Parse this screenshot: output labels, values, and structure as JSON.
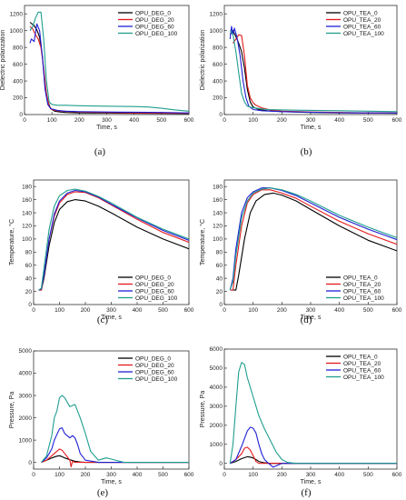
{
  "colors": {
    "black": "#000000",
    "red": "#e41a1c",
    "blue": "#1f1fd6",
    "teal": "#1f9e8f"
  },
  "chart_data": [
    {
      "type": "line",
      "caption": "(a)",
      "xlabel": "Time, s",
      "ylabel": "Dielectric polarization",
      "xlim": [
        0,
        600
      ],
      "ylim": [
        0,
        1300
      ],
      "xticks": [
        0,
        100,
        200,
        300,
        400,
        500,
        600
      ],
      "yticks": [
        0,
        200,
        400,
        600,
        800,
        1000,
        1200
      ],
      "legend": "top-right",
      "series": [
        {
          "name": "OPU_DEG_0",
          "color": "#000000",
          "x": [
            20,
            35,
            45,
            55,
            65,
            75,
            85,
            95,
            110,
            130,
            150,
            200,
            300,
            400,
            500,
            600
          ],
          "y": [
            1100,
            1060,
            1010,
            920,
            700,
            350,
            160,
            70,
            40,
            30,
            25,
            20,
            18,
            15,
            14,
            12
          ]
        },
        {
          "name": "OPU_DEG_20",
          "color": "#e41a1c",
          "x": [
            20,
            30,
            40,
            50,
            60,
            70,
            80,
            90,
            100,
            120,
            140,
            200,
            300,
            400,
            500,
            600
          ],
          "y": [
            1050,
            1020,
            950,
            900,
            800,
            550,
            250,
            100,
            60,
            45,
            40,
            30,
            25,
            20,
            18,
            15
          ]
        },
        {
          "name": "OPU_DEG_60",
          "color": "#1f1fd6",
          "x": [
            20,
            25,
            35,
            45,
            55,
            65,
            75,
            85,
            95,
            120,
            150,
            200,
            300,
            400,
            500,
            600
          ],
          "y": [
            850,
            900,
            870,
            1080,
            1000,
            700,
            300,
            120,
            70,
            50,
            40,
            35,
            30,
            28,
            25,
            20
          ]
        },
        {
          "name": "OPU_DEG_100",
          "color": "#1f9e8f",
          "x": [
            20,
            30,
            40,
            50,
            60,
            70,
            80,
            90,
            100,
            120,
            150,
            200,
            300,
            400,
            450,
            500,
            550,
            600
          ],
          "y": [
            1000,
            1050,
            1150,
            1220,
            1220,
            900,
            400,
            150,
            120,
            110,
            110,
            105,
            100,
            95,
            90,
            75,
            55,
            40
          ]
        }
      ]
    },
    {
      "type": "line",
      "caption": "(b)",
      "xlabel": "Time, s",
      "ylabel": "Dielectric polarization",
      "xlim": [
        0,
        600
      ],
      "ylim": [
        0,
        1300
      ],
      "xticks": [
        0,
        100,
        200,
        300,
        400,
        500,
        600
      ],
      "yticks": [
        0,
        200,
        400,
        600,
        800,
        1000,
        1200
      ],
      "legend": "top-right",
      "series": [
        {
          "name": "OPU_TEA_0",
          "color": "#000000",
          "x": [
            20,
            30,
            40,
            50,
            60,
            70,
            80,
            90,
            100,
            120,
            150,
            200,
            300,
            400,
            500,
            600
          ],
          "y": [
            950,
            1000,
            930,
            850,
            750,
            550,
            300,
            150,
            90,
            60,
            45,
            35,
            25,
            20,
            18,
            15
          ]
        },
        {
          "name": "OPU_TEA_20",
          "color": "#e41a1c",
          "x": [
            30,
            40,
            50,
            60,
            70,
            80,
            90,
            100,
            110,
            130,
            160,
            200,
            300,
            400,
            500,
            600
          ],
          "y": [
            850,
            900,
            950,
            940,
            700,
            350,
            200,
            140,
            110,
            80,
            55,
            40,
            30,
            25,
            20,
            18
          ]
        },
        {
          "name": "OPU_TEA_60",
          "color": "#1f1fd6",
          "x": [
            20,
            25,
            30,
            35,
            45,
            55,
            65,
            75,
            85,
            100,
            130,
            200,
            300,
            400,
            500,
            600
          ],
          "y": [
            900,
            1050,
            950,
            1030,
            900,
            700,
            400,
            200,
            100,
            60,
            45,
            35,
            28,
            22,
            20,
            18
          ]
        },
        {
          "name": "OPU_TEA_100",
          "color": "#1f9e8f",
          "x": [
            20,
            25,
            30,
            40,
            50,
            60,
            70,
            80,
            100,
            150,
            200,
            300,
            400,
            500,
            600
          ],
          "y": [
            1000,
            980,
            950,
            750,
            500,
            250,
            150,
            100,
            80,
            60,
            55,
            50,
            45,
            40,
            35
          ]
        }
      ]
    },
    {
      "type": "line",
      "caption": "(c)",
      "xlabel": "Time, s",
      "ylabel": "Temperature, °C",
      "xlim": [
        0,
        600
      ],
      "ylim": [
        0,
        190
      ],
      "xticks": [
        0,
        100,
        200,
        300,
        400,
        500,
        600
      ],
      "yticks": [
        0,
        20,
        40,
        60,
        80,
        100,
        120,
        140,
        160,
        180
      ],
      "legend": "bottom-right",
      "series": [
        {
          "name": "OPU_DEG_0",
          "color": "#000000",
          "x": [
            20,
            30,
            40,
            60,
            80,
            100,
            130,
            160,
            200,
            250,
            300,
            400,
            500,
            600
          ],
          "y": [
            22,
            22,
            40,
            90,
            125,
            145,
            157,
            160,
            158,
            150,
            140,
            118,
            100,
            85
          ]
        },
        {
          "name": "OPU_DEG_20",
          "color": "#e41a1c",
          "x": [
            20,
            30,
            40,
            60,
            80,
            100,
            130,
            160,
            200,
            250,
            300,
            400,
            500,
            600
          ],
          "y": [
            22,
            22,
            45,
            100,
            135,
            155,
            168,
            172,
            171,
            163,
            152,
            130,
            110,
            95
          ]
        },
        {
          "name": "OPU_DEG_60",
          "color": "#1f1fd6",
          "x": [
            20,
            30,
            40,
            60,
            80,
            100,
            130,
            160,
            200,
            250,
            300,
            400,
            500,
            600
          ],
          "y": [
            22,
            24,
            45,
            100,
            138,
            158,
            170,
            174,
            172,
            164,
            153,
            132,
            113,
            98
          ]
        },
        {
          "name": "OPU_DEG_100",
          "color": "#1f9e8f",
          "x": [
            20,
            30,
            40,
            60,
            80,
            100,
            130,
            160,
            200,
            250,
            300,
            400,
            500,
            600
          ],
          "y": [
            22,
            25,
            55,
            115,
            150,
            166,
            174,
            176,
            173,
            165,
            155,
            133,
            115,
            100
          ]
        }
      ]
    },
    {
      "type": "line",
      "caption": "(d)",
      "xlabel": "Time, s",
      "ylabel": "Temperature, °C",
      "xlim": [
        0,
        600
      ],
      "ylim": [
        0,
        190
      ],
      "xticks": [
        0,
        100,
        200,
        300,
        400,
        500,
        600
      ],
      "yticks": [
        0,
        20,
        40,
        60,
        80,
        100,
        120,
        140,
        160,
        180
      ],
      "legend": "bottom-right",
      "series": [
        {
          "name": "OPU_TEA_0",
          "color": "#000000",
          "x": [
            30,
            40,
            50,
            70,
            90,
            110,
            140,
            170,
            200,
            250,
            300,
            400,
            500,
            600
          ],
          "y": [
            22,
            22,
            45,
            100,
            140,
            158,
            168,
            170,
            167,
            158,
            145,
            120,
            98,
            82
          ]
        },
        {
          "name": "OPU_TEA_20",
          "color": "#e41a1c",
          "x": [
            20,
            30,
            40,
            60,
            80,
            100,
            130,
            160,
            200,
            250,
            300,
            400,
            500,
            600
          ],
          "y": [
            22,
            22,
            60,
            120,
            155,
            168,
            175,
            175,
            170,
            162,
            150,
            127,
            108,
            92
          ]
        },
        {
          "name": "OPU_TEA_60",
          "color": "#1f1fd6",
          "x": [
            20,
            30,
            40,
            60,
            80,
            100,
            130,
            160,
            200,
            250,
            300,
            400,
            500,
            600
          ],
          "y": [
            22,
            40,
            85,
            140,
            163,
            172,
            178,
            178,
            174,
            166,
            155,
            133,
            115,
            99
          ]
        },
        {
          "name": "OPU_TEA_100",
          "color": "#1f9e8f",
          "x": [
            20,
            30,
            40,
            60,
            80,
            100,
            130,
            160,
            200,
            250,
            300,
            400,
            500,
            600
          ],
          "y": [
            22,
            35,
            75,
            132,
            158,
            170,
            176,
            178,
            175,
            168,
            158,
            136,
            118,
            102
          ]
        }
      ]
    },
    {
      "type": "line",
      "caption": "(e)",
      "xlabel": "Time, s",
      "ylabel": "Pressure, Pa",
      "xlim": [
        0,
        600
      ],
      "ylim": [
        -300,
        5000
      ],
      "xticks": [
        0,
        100,
        200,
        300,
        400,
        500,
        600
      ],
      "yticks": [
        0,
        1000,
        2000,
        3000,
        4000,
        5000
      ],
      "legend": "top-right",
      "series": [
        {
          "name": "OPU_DEG_0",
          "color": "#000000",
          "x": [
            30,
            50,
            70,
            90,
            100,
            110,
            120,
            140,
            160,
            180,
            200,
            300,
            400,
            500,
            600
          ],
          "y": [
            0,
            100,
            200,
            280,
            300,
            260,
            200,
            120,
            50,
            20,
            0,
            0,
            0,
            0,
            0
          ]
        },
        {
          "name": "OPU_DEG_20",
          "color": "#e41a1c",
          "x": [
            30,
            50,
            70,
            90,
            100,
            110,
            120,
            130,
            140,
            145,
            150,
            160,
            200,
            300,
            600
          ],
          "y": [
            0,
            100,
            300,
            500,
            600,
            550,
            400,
            250,
            100,
            -200,
            50,
            0,
            0,
            0,
            0
          ]
        },
        {
          "name": "OPU_DEG_60",
          "color": "#1f1fd6",
          "x": [
            30,
            50,
            70,
            80,
            100,
            110,
            120,
            140,
            150,
            160,
            170,
            180,
            200,
            250,
            300,
            600
          ],
          "y": [
            0,
            200,
            600,
            1000,
            1500,
            1550,
            1300,
            1100,
            1200,
            1100,
            800,
            400,
            100,
            0,
            0,
            0
          ]
        },
        {
          "name": "OPU_DEG_100",
          "color": "#1f9e8f",
          "x": [
            30,
            50,
            70,
            80,
            90,
            100,
            110,
            120,
            140,
            160,
            180,
            200,
            220,
            250,
            280,
            300,
            350,
            400,
            600
          ],
          "y": [
            0,
            300,
            1200,
            2000,
            2300,
            2900,
            3000,
            2900,
            2500,
            2600,
            2000,
            1300,
            500,
            100,
            200,
            150,
            0,
            0,
            0
          ]
        }
      ]
    },
    {
      "type": "line",
      "caption": "(f)",
      "xlabel": "Time, s",
      "ylabel": "Pressure, Pa",
      "xlim": [
        0,
        600
      ],
      "ylim": [
        -300,
        6000
      ],
      "xticks": [
        0,
        100,
        200,
        300,
        400,
        500,
        600
      ],
      "yticks": [
        0,
        1000,
        2000,
        3000,
        4000,
        5000,
        6000
      ],
      "legend": "top-right",
      "series": [
        {
          "name": "OPU_TEA_0",
          "color": "#000000",
          "x": [
            20,
            40,
            60,
            80,
            90,
            100,
            110,
            120,
            140,
            160,
            200,
            600
          ],
          "y": [
            0,
            100,
            250,
            350,
            330,
            280,
            200,
            100,
            30,
            0,
            0,
            0
          ]
        },
        {
          "name": "OPU_TEA_20",
          "color": "#e41a1c",
          "x": [
            20,
            40,
            60,
            70,
            80,
            90,
            100,
            110,
            120,
            600
          ],
          "y": [
            0,
            200,
            500,
            800,
            850,
            700,
            400,
            100,
            0,
            0
          ]
        },
        {
          "name": "OPU_TEA_60",
          "color": "#1f1fd6",
          "x": [
            20,
            40,
            60,
            80,
            90,
            100,
            110,
            120,
            130,
            140,
            150,
            170,
            200,
            600
          ],
          "y": [
            0,
            200,
            900,
            1700,
            1900,
            1850,
            1600,
            1000,
            500,
            200,
            50,
            -200,
            0,
            0
          ]
        },
        {
          "name": "OPU_TEA_100",
          "color": "#1f9e8f",
          "x": [
            20,
            30,
            40,
            50,
            60,
            70,
            80,
            100,
            120,
            140,
            160,
            180,
            200,
            220,
            250,
            300,
            600
          ],
          "y": [
            0,
            1000,
            3000,
            4800,
            5300,
            5200,
            4500,
            3500,
            2500,
            1800,
            1200,
            600,
            200,
            50,
            0,
            0,
            0
          ]
        }
      ]
    }
  ]
}
